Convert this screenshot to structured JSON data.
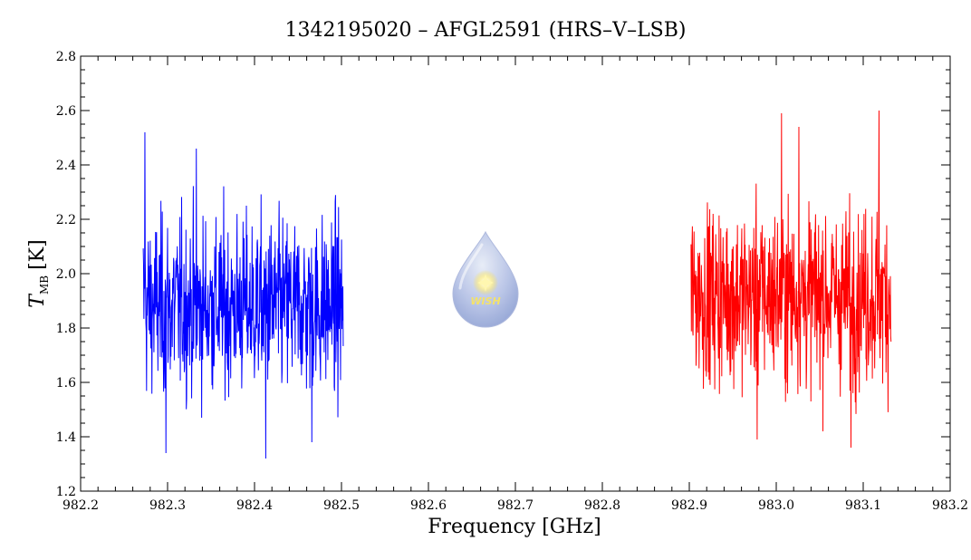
{
  "chart_data": {
    "type": "line",
    "title": "1342195020 – AFGL2591 (HRS–V–LSB)",
    "xlabel": "Frequency [GHz]",
    "ylabel_main": "T",
    "ylabel_sub": "MB",
    "ylabel_unit": "[K]",
    "xlim": [
      982.2,
      983.2
    ],
    "ylim": [
      1.2,
      2.8
    ],
    "xticks": [
      "982.2",
      "982.3",
      "982.4",
      "982.5",
      "982.6",
      "982.7",
      "982.8",
      "982.9",
      "983.0",
      "983.1",
      "983.2"
    ],
    "yticks": [
      "1.2",
      "1.4",
      "1.6",
      "1.8",
      "2.0",
      "2.2",
      "2.4",
      "2.6",
      "2.8"
    ],
    "grid": false,
    "series": [
      {
        "color": "#0000ff",
        "x_range": [
          982.272,
          982.502
        ],
        "mean": 1.88,
        "points": 600,
        "sample_extrema": [
          [
            982.274,
            2.52
          ],
          [
            982.298,
            1.34
          ],
          [
            982.333,
            2.46
          ],
          [
            982.413,
            1.32
          ],
          [
            982.466,
            1.38
          ]
        ]
      },
      {
        "color": "#ff0000",
        "x_range": [
          982.902,
          983.132
        ],
        "mean": 1.92,
        "points": 600,
        "sample_extrema": [
          [
            983.006,
            2.59
          ],
          [
            983.026,
            2.54
          ],
          [
            983.118,
            2.6
          ],
          [
            983.086,
            1.36
          ],
          [
            982.978,
            1.39
          ]
        ]
      }
    ]
  },
  "logo": {
    "text": "WISH",
    "colors": {
      "drop_top": "#dfe6f4",
      "drop_bottom": "#8fa3d6",
      "star": "#ffe13a",
      "text": "#f4e26a"
    }
  }
}
